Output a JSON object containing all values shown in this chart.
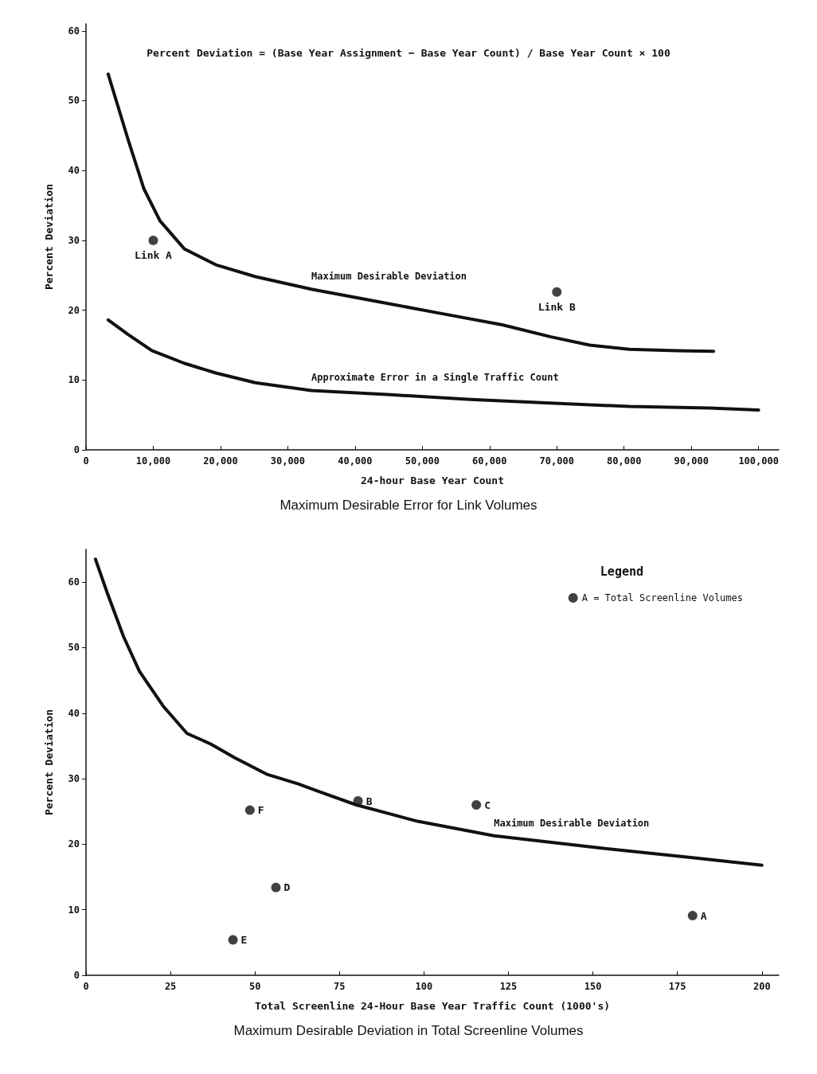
{
  "chart_data": [
    {
      "type": "line",
      "title": "Maximum Desirable Error for Link Volumes",
      "xlabel": "24-hour Base Year Count",
      "ylabel": "Percent Deviation",
      "xlim": [
        0,
        103000
      ],
      "xticks": [
        0,
        {
          "value": 10000,
          "label": "10,000"
        },
        {
          "value": 20000,
          "label": "20,000"
        },
        {
          "value": 30000,
          "label": "30,000"
        },
        {
          "value": 40000,
          "label": "40,000"
        },
        {
          "value": 50000,
          "label": "50,000"
        },
        {
          "value": 60000,
          "label": "60,000"
        },
        {
          "value": 70000,
          "label": "70,000"
        },
        {
          "value": 80000,
          "label": "80,000"
        },
        {
          "value": 90000,
          "label": "90,000"
        },
        {
          "value": 100000,
          "label": "100,000"
        }
      ],
      "ylim": [
        0,
        61
      ],
      "yticks": [
        0,
        10,
        20,
        30,
        40,
        50,
        60
      ],
      "grid": false,
      "legend": false,
      "annotations": [
        "Percent Deviation = (Base Year Assignment − Base Year Count) / Base Year Count × 100",
        {
          "text": "Link A",
          "x": 10000,
          "y": 30
        },
        {
          "text": "Link B",
          "x": 70000,
          "y": 22.6
        }
      ],
      "series": [
        {
          "name": "Maximum Desirable Deviation",
          "color": "#111111",
          "marker": "none",
          "x": [
            3300,
            4500,
            6300,
            8600,
            11000,
            14600,
            19300,
            25200,
            33500,
            43000,
            52400,
            61900,
            69000,
            74900,
            80800,
            87900,
            93300
          ],
          "values": [
            53.8,
            50,
            44.3,
            37.4,
            32.8,
            28.8,
            26.5,
            24.8,
            23,
            21.3,
            19.6,
            17.9,
            16.2,
            15,
            14.4,
            14.2,
            14.1
          ]
        },
        {
          "name": "Approximate Error in a Single Traffic Count",
          "color": "#111111",
          "marker": "none",
          "x": [
            3300,
            6300,
            9800,
            14600,
            19300,
            25200,
            33500,
            45300,
            57200,
            69000,
            80800,
            92700,
            100000
          ],
          "values": [
            18.6,
            16.5,
            14.2,
            12.4,
            11,
            9.6,
            8.5,
            7.9,
            7.2,
            6.7,
            6.2,
            6,
            5.7
          ]
        },
        {
          "type": "scatter",
          "color": "#111111",
          "marker": "circle",
          "x": [
            10000,
            70000
          ],
          "values": [
            30,
            22.6
          ]
        }
      ]
    },
    {
      "type": "line",
      "title": "Maximum Desirable Deviation in Total Screenline Volumes",
      "xlabel": "Total Screenline 24-Hour Base Year Traffic Count (1000's)",
      "ylabel": "Percent Deviation",
      "xlim": [
        0,
        205
      ],
      "xticks": [
        0,
        25,
        50,
        75,
        100,
        125,
        150,
        175,
        200
      ],
      "ylim": [
        0,
        65
      ],
      "yticks": [
        0,
        10,
        20,
        30,
        40,
        50,
        60
      ],
      "grid": false,
      "legend": "top right",
      "legend_title": "Legend",
      "annotations": [
        {
          "text": "A",
          "x": 179.5,
          "y": 9.1
        },
        {
          "text": "B",
          "x": 80.5,
          "y": 26.6
        },
        {
          "text": "C",
          "x": 115.5,
          "y": 26
        },
        {
          "text": "D",
          "x": 56.2,
          "y": 13.4
        },
        {
          "text": "E",
          "x": 43.5,
          "y": 5.4
        },
        {
          "text": "F",
          "x": 48.5,
          "y": 25.2
        }
      ],
      "series": [
        {
          "name": "Maximum Desirable Deviation",
          "color": "#111111",
          "marker": "none",
          "x": [
            2.8,
            6.4,
            11.1,
            15.8,
            22.8,
            29.9,
            36.9,
            44,
            53.4,
            62.8,
            69.2,
            80,
            98.1,
            120.7,
            152.5,
            180.5,
            200
          ],
          "values": [
            63.5,
            58.2,
            51.7,
            46.4,
            41.1,
            36.9,
            35.3,
            33.2,
            30.7,
            29.2,
            28,
            26,
            23.5,
            21.3,
            19.4,
            17.9,
            16.8
          ]
        },
        {
          "name": "A = Total Screenline Volumes",
          "type": "scatter",
          "color": "#111111",
          "marker": "circle",
          "x": [
            179.5,
            80.5,
            115.5,
            56.2,
            43.5,
            48.5
          ],
          "values": [
            9.1,
            26.6,
            26,
            13.4,
            5.4,
            25.2
          ]
        }
      ]
    }
  ]
}
